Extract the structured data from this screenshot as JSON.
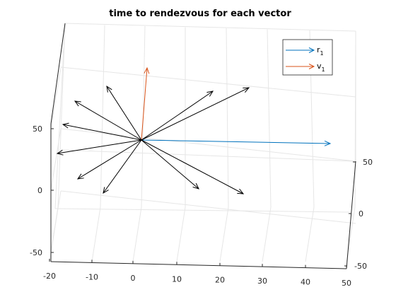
{
  "chart_data": {
    "type": "quiver3",
    "title": "time to rendezvous for each vector",
    "grid": true,
    "box": true,
    "xlim": [
      -20,
      50
    ],
    "ylim": [
      -50,
      50
    ],
    "zlim": [
      -50,
      50
    ],
    "xticks": [
      "-20",
      "-10",
      "0",
      "10",
      "20",
      "30",
      "40",
      "50"
    ],
    "yticks": [
      "50",
      "0",
      "-50"
    ],
    "zticks": [
      "50",
      "0",
      "-50"
    ],
    "legend": {
      "placement": "top-right",
      "entries": [
        {
          "base": "r",
          "sub": "1",
          "color": "#0072BD"
        },
        {
          "base": "v",
          "sub": "1",
          "color": "#D95319"
        }
      ]
    },
    "series": [
      {
        "name": "r1",
        "color": "#0072BD",
        "arrows": [
          {
            "dir": "right",
            "scale": 1.0
          }
        ]
      },
      {
        "name": "v1",
        "color": "#D95319",
        "arrows": [
          {
            "dir": "up",
            "scale": 1.0
          }
        ]
      },
      {
        "color": "#000000",
        "arrows": [
          {
            "dir": "up-left"
          },
          {
            "dir": "up-right-1"
          },
          {
            "dir": "up-right-2"
          },
          {
            "dir": "left-up"
          },
          {
            "dir": "left-mid"
          },
          {
            "dir": "left-down"
          },
          {
            "dir": "down-left-1"
          },
          {
            "dir": "down-left-2"
          },
          {
            "dir": "down-right-1"
          },
          {
            "dir": "down-right-2"
          },
          {
            "dir": "up-left-2"
          }
        ]
      }
    ]
  }
}
